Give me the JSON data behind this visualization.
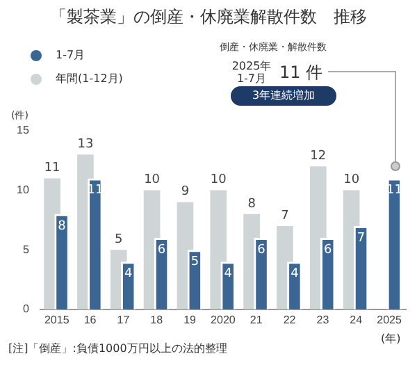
{
  "chart_data": {
    "type": "bar",
    "title": "「製茶業」の倒産・休廃業解散件数　推移",
    "categories": [
      "2015",
      "16",
      "17",
      "18",
      "19",
      "2020",
      "21",
      "22",
      "23",
      "24",
      "2025"
    ],
    "series": [
      {
        "name": "年間(1-12月)",
        "color": "#cfd4d7",
        "values": [
          11,
          13,
          5,
          10,
          9,
          10,
          8,
          7,
          12,
          10,
          null
        ]
      },
      {
        "name": "1-7月",
        "color": "#3b6592",
        "values": [
          8,
          11,
          4,
          6,
          5,
          4,
          6,
          4,
          6,
          7,
          11
        ]
      }
    ],
    "xlabel": "(年)",
    "ylabel": "(件)",
    "ylim": [
      0,
      15
    ],
    "yticks": [
      0,
      5,
      10,
      15
    ],
    "grid": false,
    "legend": "top left",
    "data_labels": true,
    "annotations": [
      "倒産・休廃業・解散件数",
      "2025年 1-7月",
      "11 件",
      "3年連続増加",
      "[注]「倒産」:負債1000万円以上の法的整理"
    ]
  }
}
